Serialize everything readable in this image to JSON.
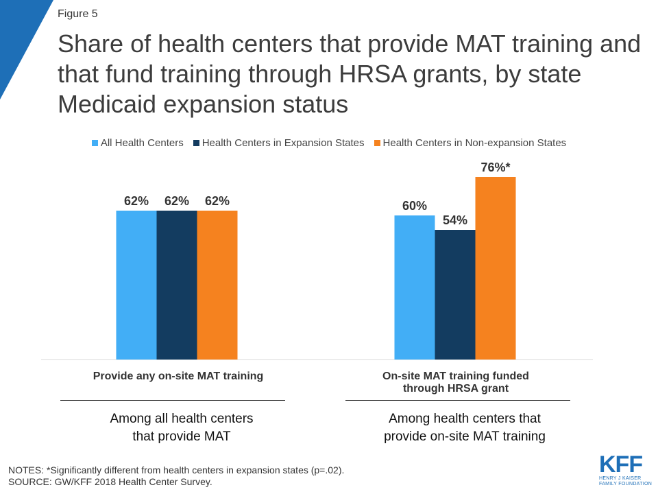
{
  "figure_label": "Figure 5",
  "title": "Share of health centers that provide MAT training and that fund training through HRSA grants, by state Medicaid expansion status",
  "colors": {
    "corner": "#1e6fb7",
    "all": "#42aef6",
    "expansion": "#133c60",
    "nonexpansion": "#f5821f"
  },
  "chart_data": {
    "type": "bar",
    "categories": [
      "Provide any on-site MAT training",
      "On-site MAT training funded through HRSA grant"
    ],
    "series": [
      {
        "name": "All Health Centers",
        "values": [
          62,
          60
        ],
        "labels": [
          "62%",
          "60%"
        ],
        "color": "#42aef6"
      },
      {
        "name": "Health Centers in Expansion States",
        "values": [
          62,
          54
        ],
        "labels": [
          "62%",
          "54%"
        ],
        "color": "#133c60"
      },
      {
        "name": "Health Centers in Non-expansion States",
        "values": [
          62,
          76
        ],
        "labels": [
          "62%",
          "76%*"
        ],
        "color": "#f5821f"
      }
    ],
    "ylim": [
      0,
      100
    ],
    "grid": false,
    "legend_position": "top"
  },
  "group_labels": [
    "Provide any on-site MAT training",
    "On-site MAT training funded\nthrough HRSA grant"
  ],
  "sub_labels": [
    "Among all health centers\nthat provide MAT",
    "Among health centers that\nprovide on-site MAT training"
  ],
  "notes": {
    "line1": "NOTES: *Significantly different from health centers in expansion states (p=.02).",
    "line2": "SOURCE: GW/KFF 2018 Health Center Survey."
  },
  "logo": {
    "name": "KFF",
    "line1": "HENRY J KAISER",
    "line2": "FAMILY FOUNDATION"
  }
}
